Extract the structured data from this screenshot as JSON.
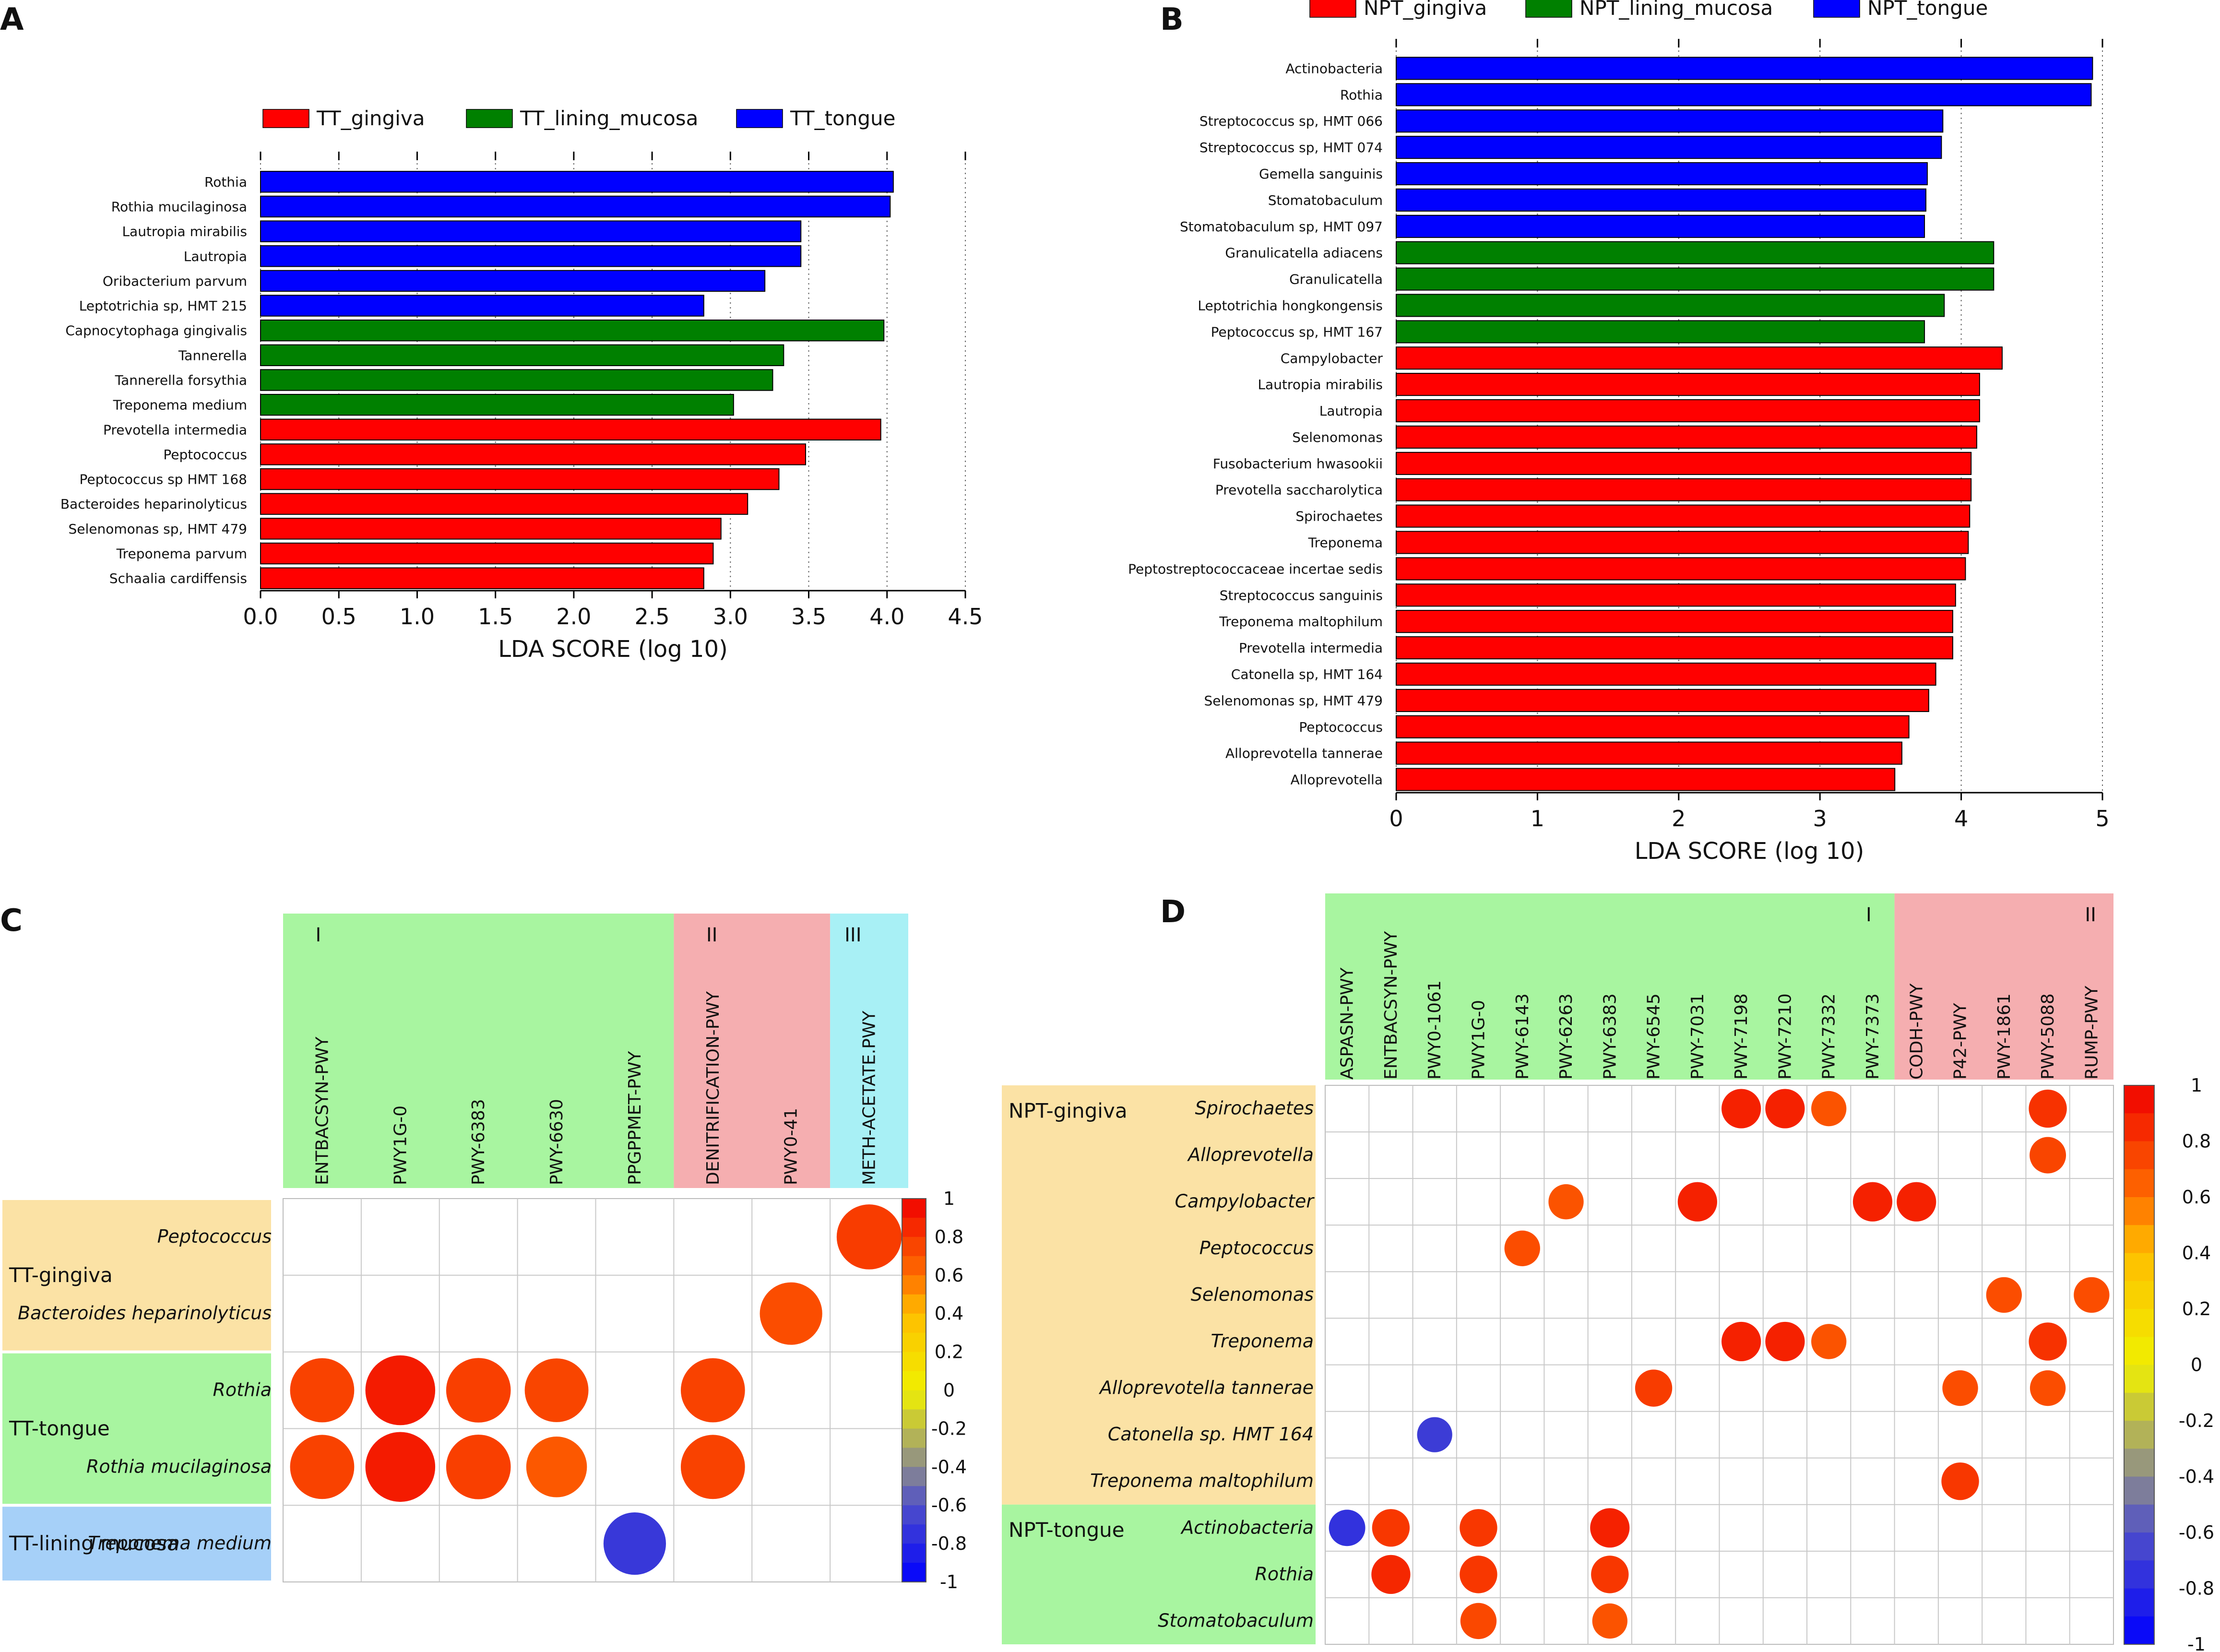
{
  "panel_labels": [
    "A",
    "B",
    "C",
    "D"
  ],
  "chart_data": [
    {
      "panel": "A",
      "type": "bar",
      "orientation": "horizontal",
      "xlabel": "LDA SCORE (log 10)",
      "xlim": [
        0,
        4.5
      ],
      "xticks": [
        "0.0",
        "0.5",
        "1.0",
        "1.5",
        "2.0",
        "2.5",
        "3.0",
        "3.5",
        "4.0",
        "4.5"
      ],
      "tick_values": [
        0,
        0.5,
        1,
        1.5,
        2,
        2.5,
        3,
        3.5,
        4,
        4.5
      ],
      "legend": [
        {
          "name": "TT_gingiva",
          "color": "#ff0000"
        },
        {
          "name": "TT_lining_mucosa",
          "color": "#008000"
        },
        {
          "name": "TT_tongue",
          "color": "#0000ff"
        }
      ],
      "bars": [
        {
          "label": "Rothia",
          "value": 4.04,
          "group": 2
        },
        {
          "label": "Rothia mucilaginosa",
          "value": 4.02,
          "group": 2
        },
        {
          "label": "Lautropia mirabilis",
          "value": 3.45,
          "group": 2
        },
        {
          "label": "Lautropia",
          "value": 3.45,
          "group": 2
        },
        {
          "label": "Oribacterium parvum",
          "value": 3.22,
          "group": 2
        },
        {
          "label": "Leptotrichia sp, HMT 215",
          "value": 2.83,
          "group": 2
        },
        {
          "label": "Capnocytophaga gingivalis",
          "value": 3.98,
          "group": 1
        },
        {
          "label": "Tannerella",
          "value": 3.34,
          "group": 1
        },
        {
          "label": "Tannerella forsythia",
          "value": 3.27,
          "group": 1
        },
        {
          "label": "Treponema medium",
          "value": 3.02,
          "group": 1
        },
        {
          "label": "Prevotella intermedia",
          "value": 3.96,
          "group": 0
        },
        {
          "label": "Peptococcus",
          "value": 3.48,
          "group": 0
        },
        {
          "label": "Peptococcus sp HMT 168",
          "value": 3.31,
          "group": 0
        },
        {
          "label": "Bacteroides heparinolyticus",
          "value": 3.11,
          "group": 0
        },
        {
          "label": "Selenomonas sp, HMT 479",
          "value": 2.94,
          "group": 0
        },
        {
          "label": "Treponema parvum",
          "value": 2.89,
          "group": 0
        },
        {
          "label": "Schaalia cardiffensis",
          "value": 2.83,
          "group": 0
        }
      ]
    },
    {
      "panel": "B",
      "type": "bar",
      "orientation": "horizontal",
      "xlabel": "LDA SCORE (log 10)",
      "xlim": [
        0,
        5
      ],
      "xticks": [
        "0",
        "1",
        "2",
        "3",
        "4",
        "5"
      ],
      "tick_values": [
        0,
        1,
        2,
        3,
        4,
        5
      ],
      "legend": [
        {
          "name": "NPT_gingiva",
          "color": "#ff0000"
        },
        {
          "name": "NPT_lining_mucosa",
          "color": "#008000"
        },
        {
          "name": "NPT_tongue",
          "color": "#0000ff"
        }
      ],
      "bars": [
        {
          "label": "Actinobacteria",
          "value": 4.93,
          "group": 2
        },
        {
          "label": "Rothia",
          "value": 4.92,
          "group": 2
        },
        {
          "label": "Streptococcus sp, HMT 066",
          "value": 3.87,
          "group": 2
        },
        {
          "label": "Streptococcus sp, HMT 074",
          "value": 3.86,
          "group": 2
        },
        {
          "label": "Gemella sanguinis",
          "value": 3.76,
          "group": 2
        },
        {
          "label": "Stomatobaculum",
          "value": 3.75,
          "group": 2
        },
        {
          "label": "Stomatobaculum sp, HMT 097",
          "value": 3.74,
          "group": 2
        },
        {
          "label": "Granulicatella adiacens",
          "value": 4.23,
          "group": 1
        },
        {
          "label": "Granulicatella",
          "value": 4.23,
          "group": 1
        },
        {
          "label": "Leptotrichia hongkongensis",
          "value": 3.88,
          "group": 1
        },
        {
          "label": "Peptococcus sp, HMT 167",
          "value": 3.74,
          "group": 1
        },
        {
          "label": "Campylobacter",
          "value": 4.29,
          "group": 0
        },
        {
          "label": "Lautropia mirabilis",
          "value": 4.13,
          "group": 0
        },
        {
          "label": "Lautropia",
          "value": 4.13,
          "group": 0
        },
        {
          "label": "Selenomonas",
          "value": 4.11,
          "group": 0
        },
        {
          "label": "Fusobacterium hwasookii",
          "value": 4.07,
          "group": 0
        },
        {
          "label": "Prevotella saccharolytica",
          "value": 4.07,
          "group": 0
        },
        {
          "label": "Spirochaetes",
          "value": 4.06,
          "group": 0
        },
        {
          "label": "Treponema",
          "value": 4.05,
          "group": 0
        },
        {
          "label": "Peptostreptococcaceae incertae sedis",
          "value": 4.03,
          "group": 0
        },
        {
          "label": "Streptococcus sanguinis",
          "value": 3.96,
          "group": 0
        },
        {
          "label": "Treponema maltophilum",
          "value": 3.94,
          "group": 0
        },
        {
          "label": "Prevotella intermedia",
          "value": 3.94,
          "group": 0
        },
        {
          "label": "Catonella sp, HMT 164",
          "value": 3.82,
          "group": 0
        },
        {
          "label": "Selenomonas sp, HMT 479",
          "value": 3.77,
          "group": 0
        },
        {
          "label": "Peptococcus",
          "value": 3.63,
          "group": 0
        },
        {
          "label": "Alloprevotella tannerae",
          "value": 3.58,
          "group": 0
        },
        {
          "label": "Alloprevotella",
          "value": 3.53,
          "group": 0
        }
      ]
    },
    {
      "panel": "C",
      "type": "heatmap",
      "columns": [
        "ENTBACSYN-PWY",
        "PWY1G-0",
        "PWY-6383",
        "PWY-6630",
        "PPGPPMET-PWY",
        "DENITRIFICATION-PWY",
        "PWY0-41",
        "METH-ACETATE.PWY"
      ],
      "column_groups": [
        {
          "label": "I",
          "span": [
            0,
            4
          ],
          "color": "#a8f5a0"
        },
        {
          "label": "II",
          "span": [
            5,
            6
          ],
          "color": "#f5aeb0"
        },
        {
          "label": "III",
          "span": [
            7,
            7
          ],
          "color": "#a8f0f5"
        }
      ],
      "rows": [
        "Peptococcus",
        "Bacteroides heparinolyticus",
        "Rothia",
        "Rothia mucilaginosa",
        "Treponema medium"
      ],
      "row_groups": [
        {
          "label": "TT-gingiva",
          "span": [
            0,
            1
          ],
          "color": "#fbe2a5"
        },
        {
          "label": "TT-tongue",
          "span": [
            2,
            3
          ],
          "color": "#a8f5a0"
        },
        {
          "label": "TT-lining mucosa",
          "span": [
            4,
            4
          ],
          "color": "#a6d0f8"
        }
      ],
      "colorbar_ticks": [
        "1",
        "0.8",
        "0.6",
        "0.4",
        "0.2",
        "0",
        "-0.2",
        "-0.4",
        "-0.6",
        "-0.8",
        "-1"
      ],
      "cells": [
        {
          "row": 0,
          "col": 7,
          "value": 0.78
        },
        {
          "row": 1,
          "col": 6,
          "value": 0.72
        },
        {
          "row": 2,
          "col": 0,
          "value": 0.76
        },
        {
          "row": 2,
          "col": 1,
          "value": 0.9
        },
        {
          "row": 2,
          "col": 2,
          "value": 0.77
        },
        {
          "row": 2,
          "col": 3,
          "value": 0.75
        },
        {
          "row": 2,
          "col": 5,
          "value": 0.76
        },
        {
          "row": 3,
          "col": 0,
          "value": 0.76
        },
        {
          "row": 3,
          "col": 1,
          "value": 0.9
        },
        {
          "row": 3,
          "col": 2,
          "value": 0.77
        },
        {
          "row": 3,
          "col": 3,
          "value": 0.68
        },
        {
          "row": 3,
          "col": 5,
          "value": 0.76
        },
        {
          "row": 4,
          "col": 4,
          "value": -0.72
        }
      ]
    },
    {
      "panel": "D",
      "type": "heatmap",
      "columns": [
        "ASPASN-PWY",
        "ENTBACSYN-PWY",
        "PWY0-1061",
        "PWY1G-0",
        "PWY-6143",
        "PWY-6263",
        "PWY-6383",
        "PWY-6545",
        "PWY-7031",
        "PWY-7198",
        "PWY-7210",
        "PWY-7332",
        "PWY-7373",
        "CODH-PWY",
        "P42-PWY",
        "PWY-1861",
        "PWY-5088",
        "RUMP-PWY"
      ],
      "column_groups": [
        {
          "label": "I",
          "span": [
            0,
            12
          ],
          "color": "#a8f5a0"
        },
        {
          "label": "II",
          "span": [
            13,
            17
          ],
          "color": "#f5aeb0"
        }
      ],
      "rows": [
        "Spirochaetes",
        "Alloprevotella",
        "Campylobacter",
        "Peptococcus",
        "Selenomonas",
        "Treponema",
        "Alloprevotella tannerae",
        "Catonella sp. HMT 164",
        "Treponema maltophilum",
        "Actinobacteria",
        "Rothia",
        "Stomatobaculum"
      ],
      "row_groups": [
        {
          "label": "NPT-gingiva",
          "span": [
            0,
            8
          ],
          "color": "#fbe2a5"
        },
        {
          "label": "NPT-tongue",
          "span": [
            9,
            11
          ],
          "color": "#a8f5a0"
        }
      ],
      "colorbar_ticks": [
        "1",
        "0.8",
        "0.6",
        "0.4",
        "0.2",
        "0",
        "-0.2",
        "-0.4",
        "-0.6",
        "-0.8",
        "-1"
      ],
      "cells": [
        {
          "row": 0,
          "col": 9,
          "value": 0.88
        },
        {
          "row": 0,
          "col": 10,
          "value": 0.88
        },
        {
          "row": 0,
          "col": 11,
          "value": 0.7
        },
        {
          "row": 0,
          "col": 16,
          "value": 0.82
        },
        {
          "row": 1,
          "col": 16,
          "value": 0.75
        },
        {
          "row": 2,
          "col": 5,
          "value": 0.7
        },
        {
          "row": 2,
          "col": 8,
          "value": 0.88
        },
        {
          "row": 2,
          "col": 12,
          "value": 0.88
        },
        {
          "row": 2,
          "col": 13,
          "value": 0.88
        },
        {
          "row": 3,
          "col": 4,
          "value": 0.72
        },
        {
          "row": 4,
          "col": 15,
          "value": 0.72
        },
        {
          "row": 4,
          "col": 17,
          "value": 0.72
        },
        {
          "row": 5,
          "col": 9,
          "value": 0.88
        },
        {
          "row": 5,
          "col": 10,
          "value": 0.88
        },
        {
          "row": 5,
          "col": 11,
          "value": 0.7
        },
        {
          "row": 5,
          "col": 16,
          "value": 0.82
        },
        {
          "row": 6,
          "col": 7,
          "value": 0.78
        },
        {
          "row": 6,
          "col": 14,
          "value": 0.72
        },
        {
          "row": 6,
          "col": 16,
          "value": 0.72
        },
        {
          "row": 7,
          "col": 2,
          "value": -0.7
        },
        {
          "row": 8,
          "col": 14,
          "value": 0.8
        },
        {
          "row": 9,
          "col": 0,
          "value": -0.75
        },
        {
          "row": 9,
          "col": 1,
          "value": 0.8
        },
        {
          "row": 9,
          "col": 3,
          "value": 0.8
        },
        {
          "row": 9,
          "col": 6,
          "value": 0.88
        },
        {
          "row": 10,
          "col": 1,
          "value": 0.86
        },
        {
          "row": 10,
          "col": 3,
          "value": 0.8
        },
        {
          "row": 10,
          "col": 6,
          "value": 0.8
        },
        {
          "row": 11,
          "col": 3,
          "value": 0.74
        },
        {
          "row": 11,
          "col": 6,
          "value": 0.7
        }
      ]
    }
  ]
}
